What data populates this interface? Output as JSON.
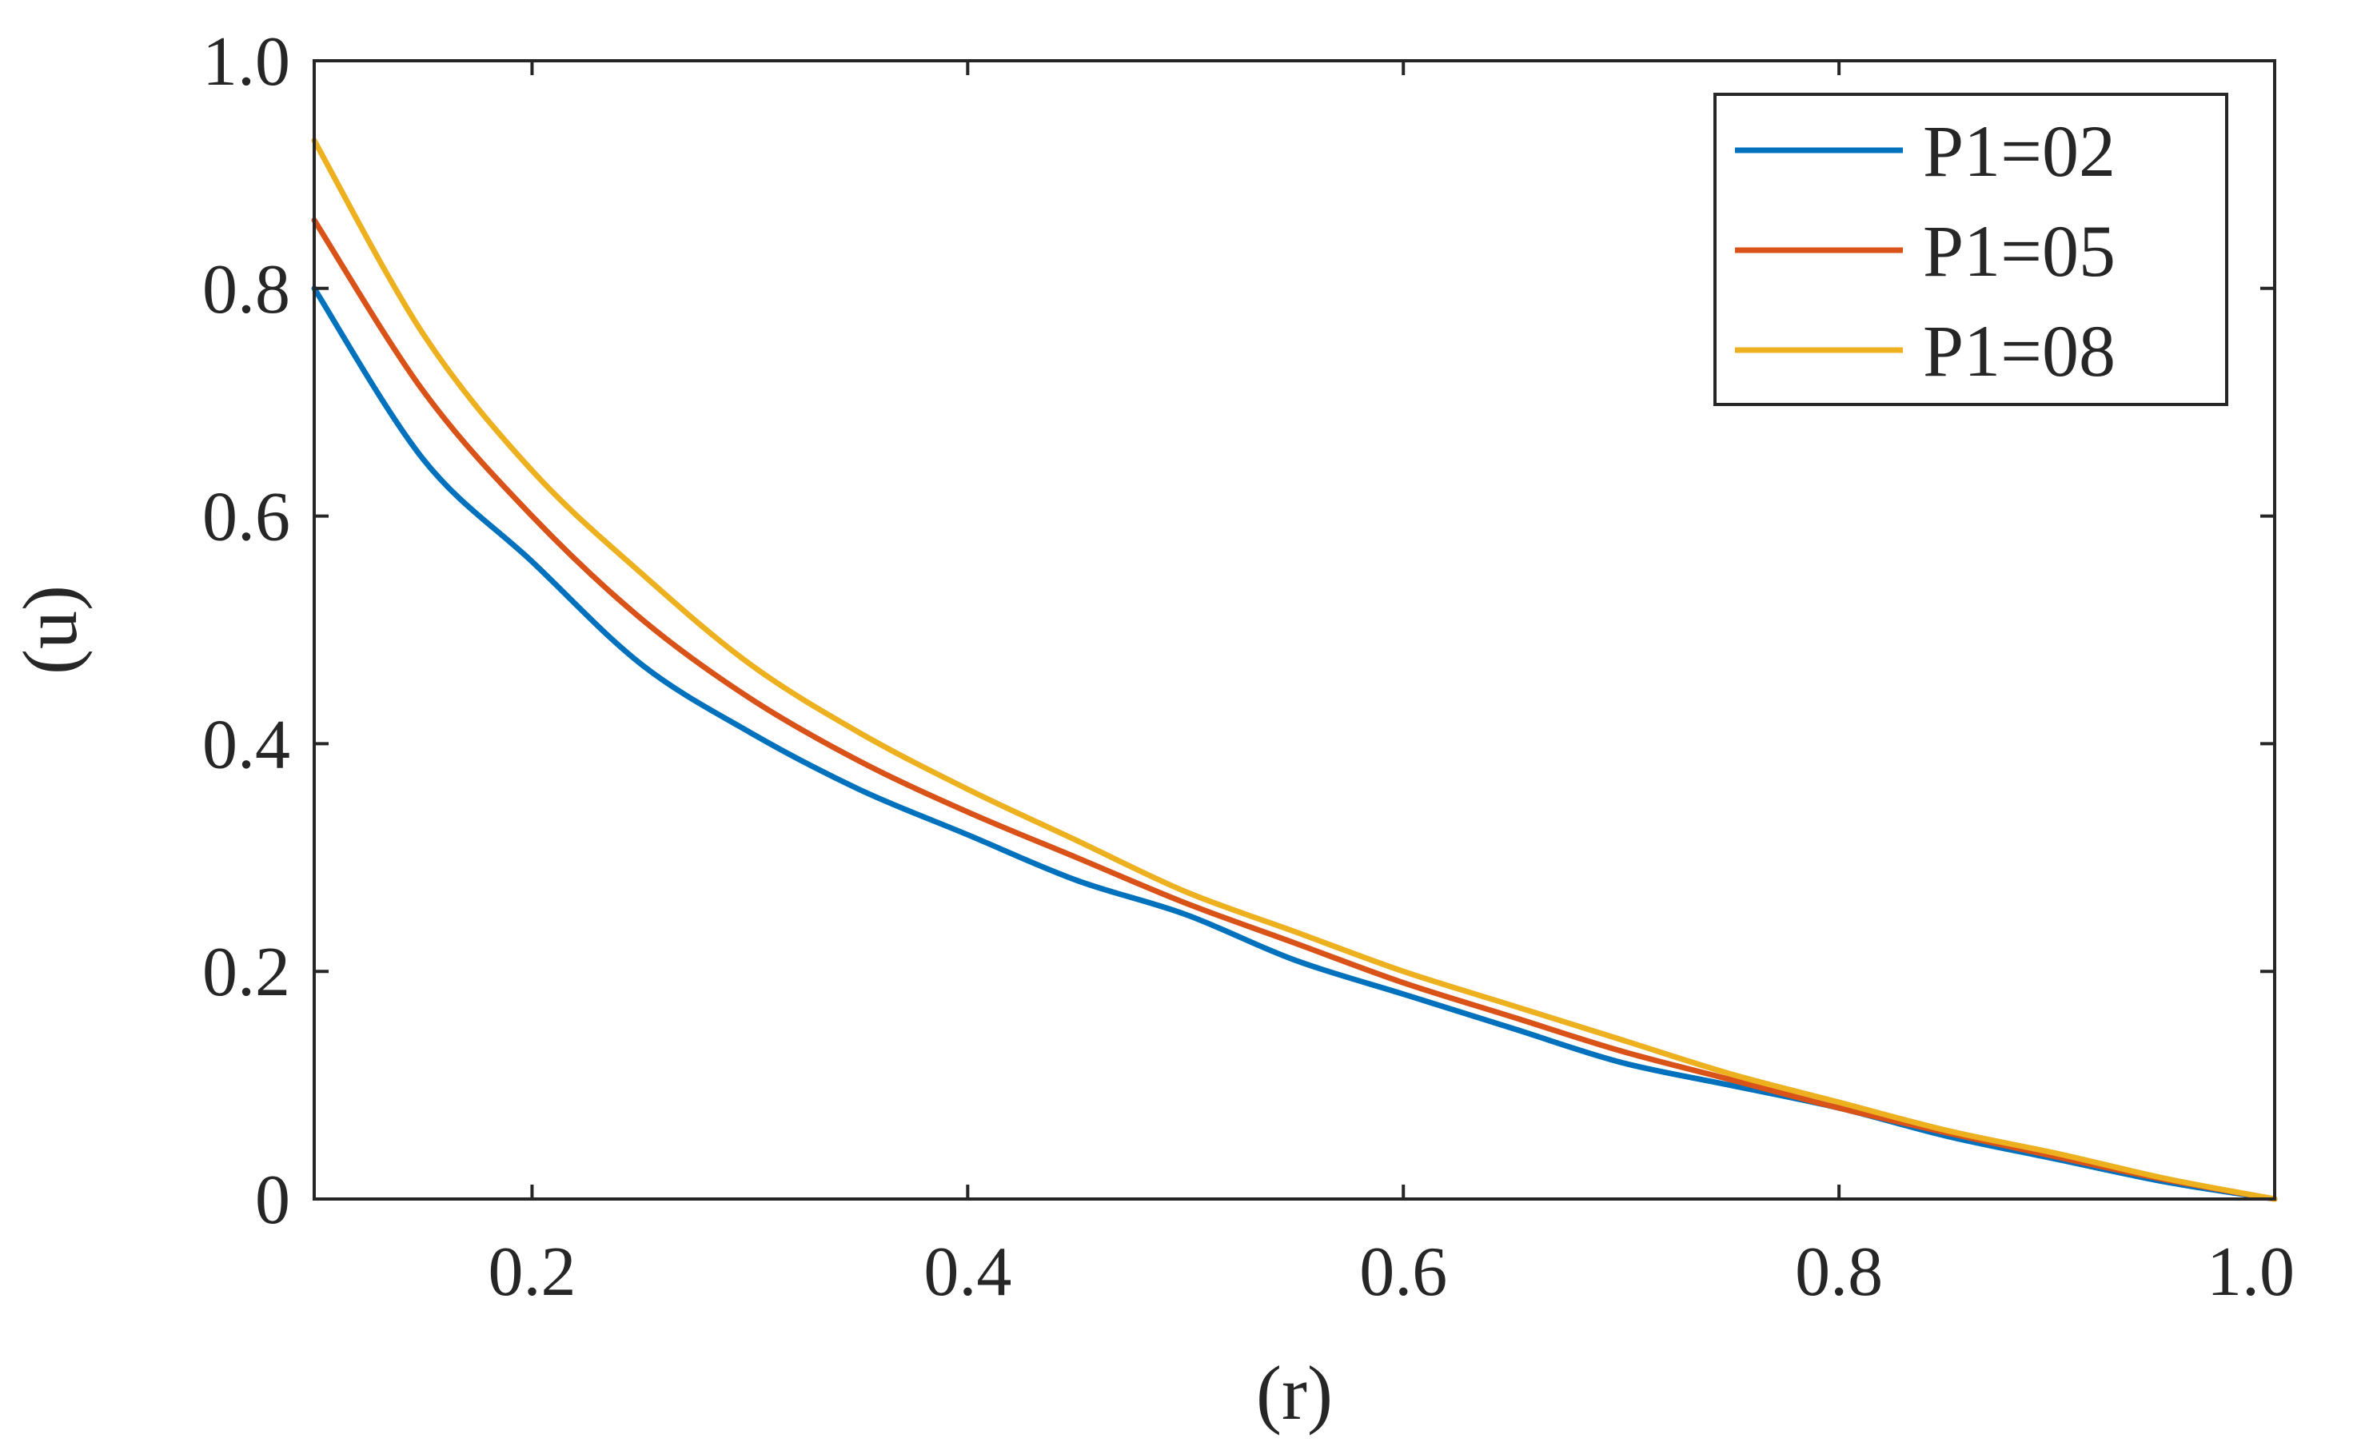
{
  "chart_data": {
    "type": "line",
    "title": "",
    "xlabel": "(r)",
    "ylabel": "(u)",
    "xlim": [
      0.1,
      1.0
    ],
    "ylim": [
      0,
      1.0
    ],
    "xticks": [
      0.2,
      0.4,
      0.6,
      0.8,
      1.0
    ],
    "xtick_labels": [
      "0.2",
      "0.4",
      "0.6",
      "0.8",
      "1.0"
    ],
    "yticks": [
      0,
      0.2,
      0.4,
      0.6,
      0.8,
      1.0
    ],
    "ytick_labels": [
      "0",
      "0.2",
      "0.4",
      "0.6",
      "0.8",
      "1.0"
    ],
    "grid": false,
    "legend_position": "top-right",
    "x": [
      0.1,
      0.15,
      0.2,
      0.25,
      0.3,
      0.35,
      0.4,
      0.45,
      0.5,
      0.55,
      0.6,
      0.65,
      0.7,
      0.75,
      0.8,
      0.85,
      0.9,
      0.95,
      1.0
    ],
    "series": [
      {
        "name": "P1=02",
        "color": "#0072BD",
        "values": [
          0.8,
          0.65,
          0.56,
          0.47,
          0.41,
          0.36,
          0.32,
          0.28,
          0.25,
          0.21,
          0.18,
          0.15,
          0.12,
          0.1,
          0.08,
          0.055,
          0.035,
          0.015,
          0.0
        ]
      },
      {
        "name": "P1=05",
        "color": "#D95319",
        "values": [
          0.86,
          0.71,
          0.6,
          0.51,
          0.44,
          0.385,
          0.34,
          0.3,
          0.26,
          0.225,
          0.19,
          0.16,
          0.13,
          0.105,
          0.08,
          0.058,
          0.037,
          0.017,
          0.0
        ]
      },
      {
        "name": "P1=08",
        "color": "#EDB120",
        "values": [
          0.93,
          0.76,
          0.64,
          0.55,
          0.47,
          0.41,
          0.36,
          0.315,
          0.27,
          0.235,
          0.2,
          0.17,
          0.14,
          0.11,
          0.085,
          0.06,
          0.04,
          0.018,
          0.0
        ]
      }
    ]
  }
}
